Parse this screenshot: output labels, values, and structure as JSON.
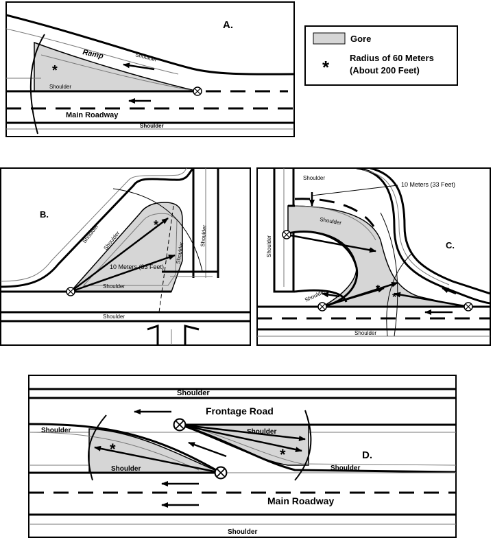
{
  "legend": {
    "gore_label": "Gore",
    "radius_symbol": "*",
    "radius_line1": "Radius of 60 Meters",
    "radius_line2": "(About 200 Feet)"
  },
  "panel_a": {
    "letter": "A.",
    "ramp": "Ramp",
    "shoulder_top": "Shoulder",
    "shoulder_gore": "Shoulder",
    "main_roadway": "Main Roadway",
    "shoulder_bottom": "Shoulder",
    "star": "*"
  },
  "panel_b": {
    "letter": "B.",
    "shoulder_left": "Shoulder",
    "shoulder_mid": "Shoulder",
    "shoulder_inner": "Shoulder",
    "shoulder_right": "Shoulder",
    "shoulder_gore": "Shoulder",
    "shoulder_bottom": "Shoulder",
    "dimension": "10 Meters (33 Feet)",
    "star": "*"
  },
  "panel_c": {
    "letter": "C.",
    "dimension": "10 Meters (33 Feet)",
    "shoulder_left": "Shoulder",
    "shoulder_top": "Shoulder",
    "shoulder_loop": "Shoulder",
    "shoulder_inner": "Shoulder",
    "shoulder_bottom": "Shoulder",
    "star": "*"
  },
  "panel_d": {
    "letter": "D.",
    "shoulder_top": "Shoulder",
    "frontage_road": "Frontage Road",
    "shoulder_left": "Shoulder",
    "shoulder_gore_right": "Shoulder",
    "shoulder_gore_left": "Shoulder",
    "shoulder_right": "Shoulder",
    "main_roadway": "Main Roadway",
    "shoulder_bottom": "Shoulder",
    "star": "*"
  },
  "colors": {
    "gore_fill": "#d6d6d6",
    "line": "#000000",
    "thin_line": "#777777"
  }
}
